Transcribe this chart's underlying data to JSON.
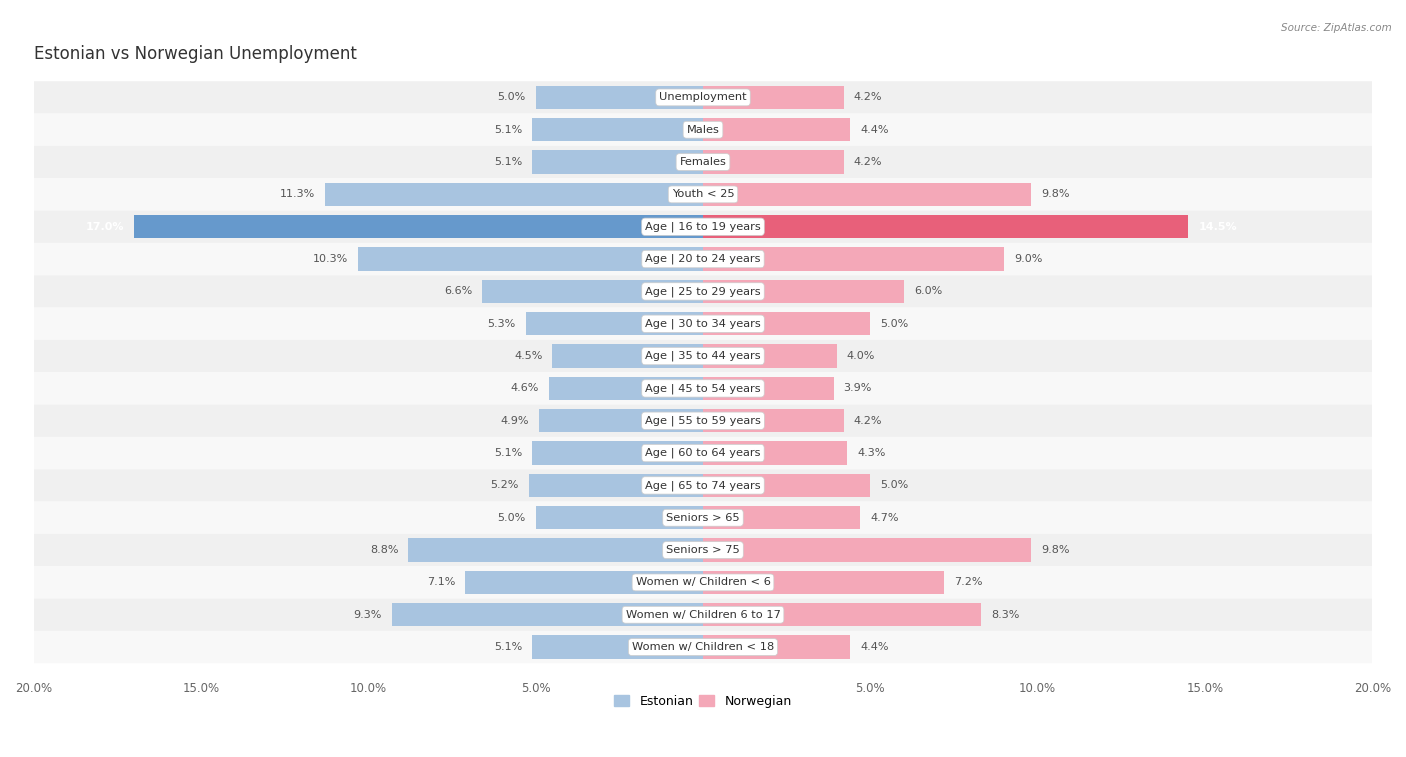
{
  "title": "Estonian vs Norwegian Unemployment",
  "source": "Source: ZipAtlas.com",
  "categories": [
    "Unemployment",
    "Males",
    "Females",
    "Youth < 25",
    "Age | 16 to 19 years",
    "Age | 20 to 24 years",
    "Age | 25 to 29 years",
    "Age | 30 to 34 years",
    "Age | 35 to 44 years",
    "Age | 45 to 54 years",
    "Age | 55 to 59 years",
    "Age | 60 to 64 years",
    "Age | 65 to 74 years",
    "Seniors > 65",
    "Seniors > 75",
    "Women w/ Children < 6",
    "Women w/ Children 6 to 17",
    "Women w/ Children < 18"
  ],
  "estonian": [
    5.0,
    5.1,
    5.1,
    11.3,
    17.0,
    10.3,
    6.6,
    5.3,
    4.5,
    4.6,
    4.9,
    5.1,
    5.2,
    5.0,
    8.8,
    7.1,
    9.3,
    5.1
  ],
  "norwegian": [
    4.2,
    4.4,
    4.2,
    9.8,
    14.5,
    9.0,
    6.0,
    5.0,
    4.0,
    3.9,
    4.2,
    4.3,
    5.0,
    4.7,
    9.8,
    7.2,
    8.3,
    4.4
  ],
  "estonian_color": "#a8c4e0",
  "norwegian_color": "#f4a8b8",
  "estonian_highlight": "#6699cc",
  "norwegian_highlight": "#e8607a",
  "highlight_row": 4,
  "background_color": "#ffffff",
  "row_bg_light": "#f0f0f0",
  "row_bg_dark": "#e0e0e0",
  "max_value": 20.0,
  "legend_estonian": "Estonian",
  "legend_norwegian": "Norwegian",
  "label_color": "#555555",
  "highlight_label_left": "#ffffff",
  "highlight_label_right": "#ffffff"
}
